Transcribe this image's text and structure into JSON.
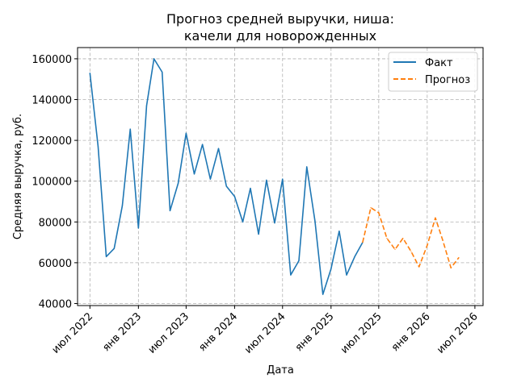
{
  "chart_data": {
    "type": "line",
    "title_lines": [
      "Прогноз средней выручки, ниша:",
      "качели для новорожденных"
    ],
    "xlabel": "Дата",
    "ylabel": "Средняя выручка, руб.",
    "ylim": [
      39000,
      165500
    ],
    "xlim": [
      "2022-05-15",
      "2026-08-01"
    ],
    "grid": true,
    "grid_style": "dashed",
    "legend_position": "top-right",
    "y_ticks": [
      40000,
      60000,
      80000,
      100000,
      120000,
      140000,
      160000
    ],
    "x_ticks": [
      {
        "date": "2022-07-01",
        "label": "июл 2022"
      },
      {
        "date": "2023-01-01",
        "label": "янв 2023"
      },
      {
        "date": "2023-07-01",
        "label": "июл 2023"
      },
      {
        "date": "2024-01-01",
        "label": "янв 2024"
      },
      {
        "date": "2024-07-01",
        "label": "июл 2024"
      },
      {
        "date": "2025-01-01",
        "label": "янв 2025"
      },
      {
        "date": "2025-07-01",
        "label": "июл 2025"
      },
      {
        "date": "2026-01-01",
        "label": "янв 2026"
      },
      {
        "date": "2026-07-01",
        "label": "июл 2026"
      }
    ],
    "series": [
      {
        "name": "Факт",
        "color": "#1f77b4",
        "dash": "solid",
        "points": [
          [
            "2022-07-01",
            153000
          ],
          [
            "2022-08-01",
            117000
          ],
          [
            "2022-09-01",
            63000
          ],
          [
            "2022-10-01",
            67000
          ],
          [
            "2022-11-01",
            88000
          ],
          [
            "2022-12-01",
            125500
          ],
          [
            "2023-01-01",
            77000
          ],
          [
            "2023-02-01",
            137000
          ],
          [
            "2023-03-01",
            160000
          ],
          [
            "2023-04-01",
            153500
          ],
          [
            "2023-05-01",
            85500
          ],
          [
            "2023-06-01",
            99000
          ],
          [
            "2023-07-01",
            123500
          ],
          [
            "2023-08-01",
            103500
          ],
          [
            "2023-09-01",
            118000
          ],
          [
            "2023-10-01",
            101000
          ],
          [
            "2023-11-01",
            116000
          ],
          [
            "2023-12-01",
            97500
          ],
          [
            "2024-01-01",
            92500
          ],
          [
            "2024-02-01",
            80000
          ],
          [
            "2024-03-01",
            96500
          ],
          [
            "2024-04-01",
            74000
          ],
          [
            "2024-05-01",
            100500
          ],
          [
            "2024-06-01",
            79500
          ],
          [
            "2024-07-01",
            101000
          ],
          [
            "2024-08-01",
            54000
          ],
          [
            "2024-09-01",
            61000
          ],
          [
            "2024-10-01",
            107000
          ],
          [
            "2024-11-01",
            80500
          ],
          [
            "2024-12-01",
            44500
          ],
          [
            "2025-01-01",
            57000
          ],
          [
            "2025-02-01",
            75500
          ],
          [
            "2025-03-01",
            54000
          ],
          [
            "2025-04-01",
            63000
          ],
          [
            "2025-05-01",
            70000
          ]
        ]
      },
      {
        "name": "Прогноз",
        "color": "#ff7f0e",
        "dash": "dashed",
        "points": [
          [
            "2025-05-01",
            70000
          ],
          [
            "2025-06-01",
            87000
          ],
          [
            "2025-07-01",
            84500
          ],
          [
            "2025-08-01",
            72000
          ],
          [
            "2025-09-01",
            66500
          ],
          [
            "2025-10-01",
            72000
          ],
          [
            "2025-11-01",
            65500
          ],
          [
            "2025-12-01",
            58000
          ],
          [
            "2026-01-01",
            68500
          ],
          [
            "2026-02-01",
            82000
          ],
          [
            "2026-03-01",
            71000
          ],
          [
            "2026-04-01",
            57500
          ],
          [
            "2026-05-01",
            62500
          ]
        ]
      }
    ]
  }
}
